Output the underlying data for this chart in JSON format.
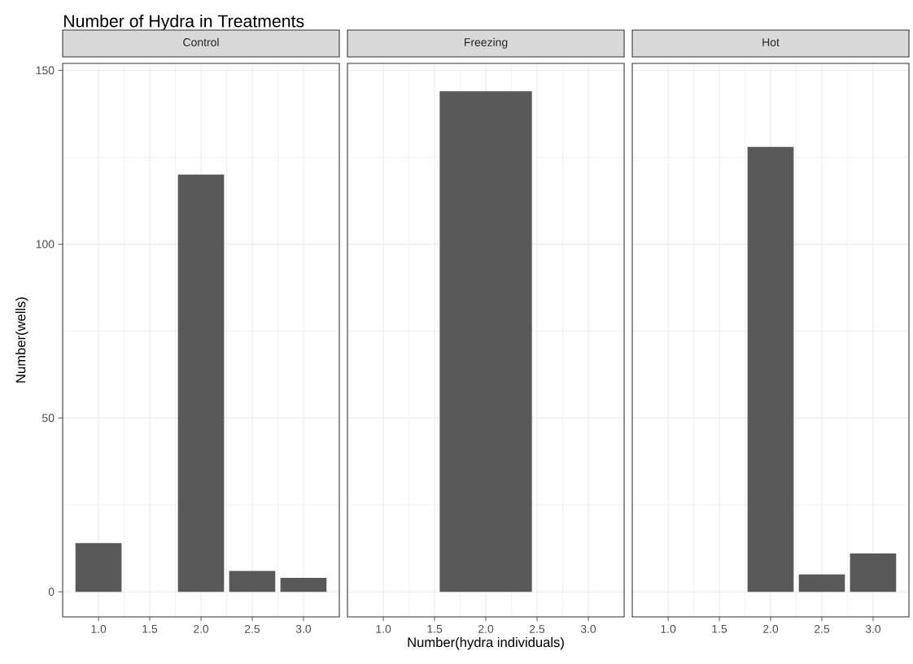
{
  "chart_data": [
    {
      "type": "bar",
      "title": "Number of Hydra in Treatments",
      "subtitle": "Control",
      "ylabel": "Number(wells)",
      "x": [
        1,
        2,
        2.5,
        3
      ],
      "values": [
        14,
        120,
        6,
        4
      ],
      "color": "#595959",
      "xlim": [
        0.65,
        3.35
      ],
      "xticks": [
        {
          "value": 1,
          "label": "1.0"
        },
        {
          "value": 1.5,
          "label": "1.5"
        },
        {
          "value": 2,
          "label": "2.0"
        },
        {
          "value": 2.5,
          "label": "2.5"
        },
        {
          "value": 3,
          "label": "3.0"
        }
      ],
      "ylim": [
        -7.2,
        152
      ],
      "yticks": [
        0,
        50,
        100,
        150
      ],
      "grid": true
    },
    {
      "type": "bar",
      "subtitle": "Freezing",
      "xlabel": "Number(hydra individuals)",
      "x": [
        2
      ],
      "values": [
        144
      ],
      "color": "#595959",
      "xlim": [
        0.65,
        3.35
      ],
      "xticks": [
        {
          "value": 1,
          "label": "1.0"
        },
        {
          "value": 1.5,
          "label": "1.5"
        },
        {
          "value": 2,
          "label": "2.0"
        },
        {
          "value": 2.5,
          "label": "2.5"
        },
        {
          "value": 3,
          "label": "3.0"
        }
      ],
      "ylim": [
        -7.2,
        152
      ],
      "yticks": [
        0,
        50,
        100,
        150
      ],
      "grid": true,
      "tick_labels": "x"
    },
    {
      "type": "bar",
      "subtitle": "Hot",
      "x": [
        2,
        2.5,
        3
      ],
      "values": [
        128,
        5,
        11
      ],
      "color": "#595959",
      "xlim": [
        0.65,
        3.35
      ],
      "xticks": [
        {
          "value": 1,
          "label": "1.0"
        },
        {
          "value": 1.5,
          "label": "1.5"
        },
        {
          "value": 2,
          "label": "2.0"
        },
        {
          "value": 2.5,
          "label": "2.5"
        },
        {
          "value": 3,
          "label": "3.0"
        }
      ],
      "ylim": [
        -7.2,
        152
      ],
      "yticks": [
        0,
        50,
        100,
        150
      ],
      "grid": true,
      "tick_labels": "x"
    }
  ]
}
